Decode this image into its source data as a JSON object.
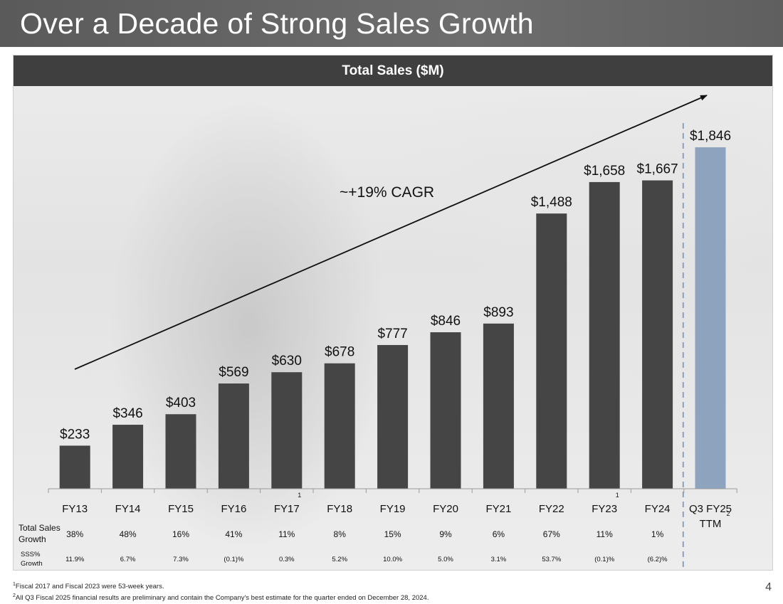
{
  "slide": {
    "title": "Over a Decade of Strong Sales Growth",
    "page_number": "4"
  },
  "panel": {
    "header": "Total Sales ($M)"
  },
  "chart_data": {
    "type": "bar",
    "title": "Total Sales ($M)",
    "categories": [
      "FY13",
      "FY14",
      "FY15",
      "FY16",
      "FY17",
      "FY18",
      "FY19",
      "FY20",
      "FY21",
      "FY22",
      "FY23",
      "FY24",
      "Q3 FY25 TTM"
    ],
    "category_footnotes": [
      "",
      "",
      "",
      "",
      "1",
      "",
      "",
      "",
      "",
      "",
      "1",
      "",
      "2"
    ],
    "values": [
      233,
      346,
      403,
      569,
      630,
      678,
      777,
      846,
      893,
      1488,
      1658,
      1667,
      1846
    ],
    "value_labels": [
      "$233",
      "$346",
      "$403",
      "$569",
      "$630",
      "$678",
      "$777",
      "$846",
      "$893",
      "$1,488",
      "$1,658",
      "$1,667",
      "$1,846"
    ],
    "highlight_last": true,
    "ylim": [
      0,
      2000
    ],
    "colors": {
      "bar": "#454545",
      "highlight": "#8ea3bd",
      "trend_arrow": "#111111",
      "divider": "#8aa0c0"
    },
    "annotation": "~+19% CAGR",
    "rows": [
      {
        "label_lines": [
          "Total Sales",
          "Growth"
        ],
        "values": [
          "38%",
          "48%",
          "16%",
          "41%",
          "11%",
          "8%",
          "15%",
          "9%",
          "6%",
          "67%",
          "11%",
          "1%"
        ]
      },
      {
        "label_lines": [
          "SSS%",
          "Growth"
        ],
        "values": [
          "11.9%",
          "6.7%",
          "7.3%",
          "(0.1)%",
          "0.3%",
          "5.2%",
          "10.0%",
          "5.0%",
          "3.1%",
          "53.7%",
          "(0.1)%",
          "(6.2)%"
        ]
      }
    ]
  },
  "footnotes": {
    "note1_marker": "1",
    "note1": "Fiscal 2017 and Fiscal 2023 were 53-week years.",
    "note2_marker": "2",
    "note2": "All Q3 Fiscal 2025 financial results are preliminary and contain the Company's best estimate for the quarter ended on December 28, 2024."
  }
}
